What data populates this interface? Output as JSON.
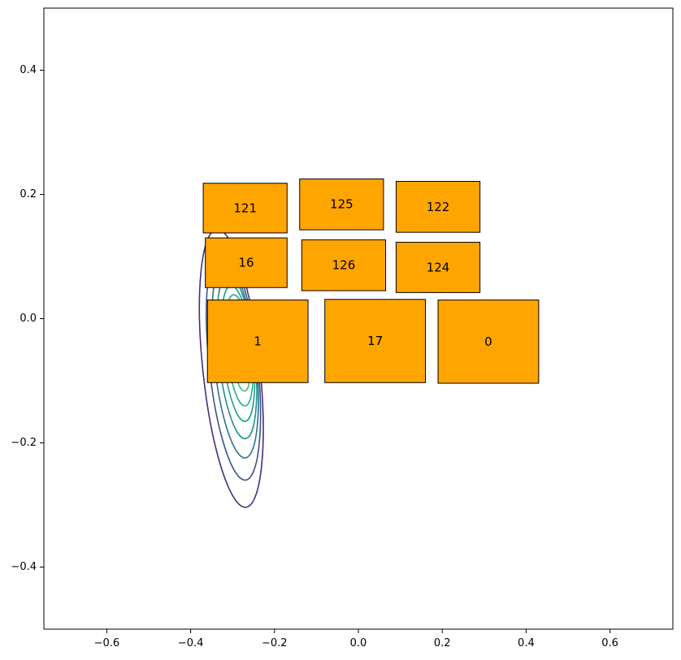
{
  "chart_data": {
    "type": "scatter",
    "title": "",
    "xlabel": "",
    "ylabel": "",
    "xlim": [
      -0.75,
      0.75
    ],
    "ylim": [
      -0.5,
      0.5
    ],
    "grid": false,
    "x_ticks": [
      -0.6,
      -0.4,
      -0.2,
      0.0,
      0.2,
      0.4,
      0.6
    ],
    "y_ticks": [
      -0.4,
      -0.2,
      0.0,
      0.2,
      0.4
    ],
    "x_tick_labels": [
      "−0.6",
      "−0.4",
      "−0.2",
      "0.0",
      "0.2",
      "0.4",
      "0.6"
    ],
    "y_tick_labels": [
      "−0.4",
      "−0.2",
      "0.0",
      "0.2",
      "0.4"
    ],
    "box_color": "#FFA500",
    "boxes": [
      {
        "label": "121",
        "x0": -0.37,
        "x1": -0.17,
        "y0": 0.138,
        "y1": 0.218
      },
      {
        "label": "125",
        "x0": -0.14,
        "x1": 0.06,
        "y0": 0.143,
        "y1": 0.225
      },
      {
        "label": "122",
        "x0": 0.09,
        "x1": 0.29,
        "y0": 0.139,
        "y1": 0.221
      },
      {
        "label": "16",
        "x0": -0.365,
        "x1": -0.17,
        "y0": 0.05,
        "y1": 0.13
      },
      {
        "label": "126",
        "x0": -0.135,
        "x1": 0.065,
        "y0": 0.045,
        "y1": 0.127
      },
      {
        "label": "124",
        "x0": 0.09,
        "x1": 0.29,
        "y0": 0.042,
        "y1": 0.123
      },
      {
        "label": "1",
        "x0": -0.36,
        "x1": -0.12,
        "y0": -0.103,
        "y1": 0.03
      },
      {
        "label": "17",
        "x0": -0.08,
        "x1": 0.16,
        "y0": -0.103,
        "y1": 0.031
      },
      {
        "label": "0",
        "x0": 0.19,
        "x1": 0.43,
        "y0": -0.104,
        "y1": 0.03
      }
    ],
    "contours": {
      "center": [
        -0.278,
        -0.04
      ],
      "levels": 9,
      "colormap": [
        "#440154",
        "#482878",
        "#3e4989",
        "#31688e",
        "#26828e",
        "#1f9e89",
        "#35b779",
        "#6ece58",
        "#b5de2b",
        "#fde725"
      ],
      "rings": [
        {
          "rx": 0.068,
          "ry": 0.225,
          "shift_x": -0.025,
          "shift_y": -0.04
        },
        {
          "rx": 0.058,
          "ry": 0.188,
          "shift_x": -0.02,
          "shift_y": -0.033
        },
        {
          "rx": 0.05,
          "ry": 0.158,
          "shift_x": -0.016,
          "shift_y": -0.027
        },
        {
          "rx": 0.043,
          "ry": 0.133,
          "shift_x": -0.012,
          "shift_y": -0.021
        },
        {
          "rx": 0.036,
          "ry": 0.11,
          "shift_x": -0.009,
          "shift_y": -0.016
        },
        {
          "rx": 0.03,
          "ry": 0.09,
          "shift_x": -0.006,
          "shift_y": -0.011
        },
        {
          "rx": 0.023,
          "ry": 0.07,
          "shift_x": -0.004,
          "shift_y": -0.007
        },
        {
          "rx": 0.016,
          "ry": 0.047,
          "shift_x": -0.002,
          "shift_y": -0.003
        },
        {
          "rx": 0.007,
          "ry": 0.02,
          "shift_x": 0.0,
          "shift_y": 0.0
        }
      ],
      "ring_colors": [
        "#472d7b",
        "#3b528b",
        "#2c728e",
        "#21918c",
        "#1fa088",
        "#28ae80",
        "#3fbc73",
        "#7ad151",
        "#c8e020"
      ]
    }
  }
}
